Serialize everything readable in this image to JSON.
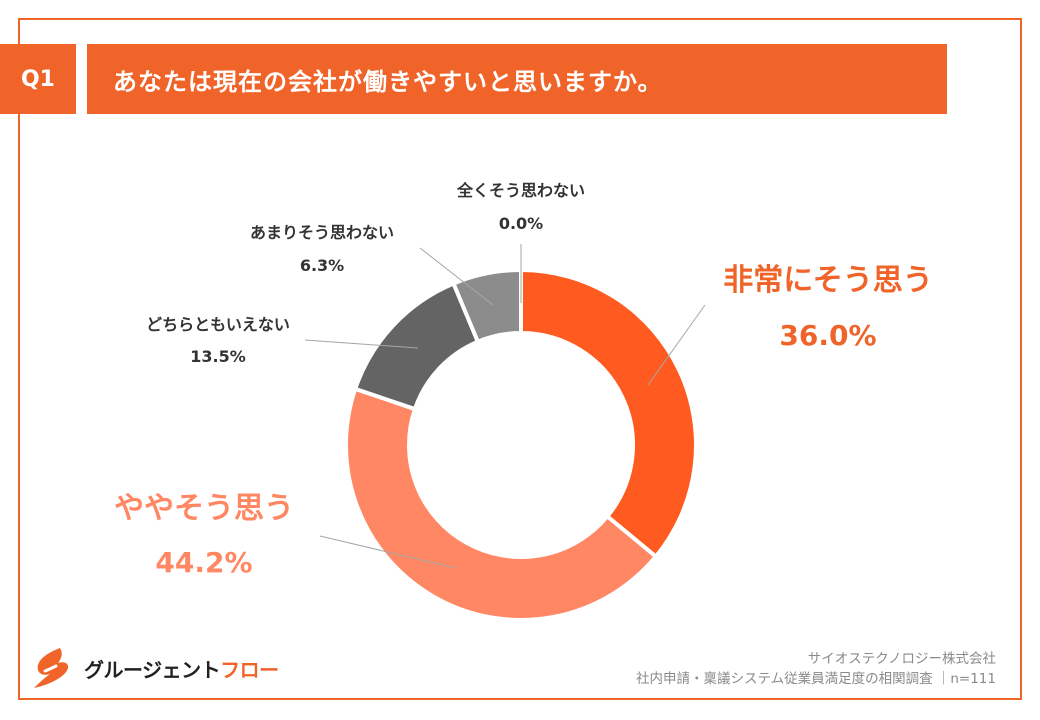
{
  "question": {
    "number": "Q1",
    "text": "あなたは現在の会社が働きやすいと思いますか。"
  },
  "chart_data": {
    "type": "pie",
    "variant": "donut",
    "title": "",
    "labels": [
      "非常にそう思う",
      "ややそう思う",
      "どちらともいえない",
      "あまりそう思わない",
      "全くそう思わない"
    ],
    "values": [
      36.0,
      44.2,
      13.5,
      6.3,
      0.0
    ],
    "value_labels": [
      "36.0%",
      "44.2%",
      "13.5%",
      "6.3%",
      "0.0%"
    ],
    "colors": [
      "#ff5a1f",
      "#ff8763",
      "#646464",
      "#8c8c8c",
      "#b4b4b4"
    ],
    "label_colors": [
      "#f0642a",
      "#ff8763",
      "#333333",
      "#333333",
      "#333333"
    ],
    "direction": "clockwise",
    "start": "top"
  },
  "logo": {
    "text_dark": "グルージェント",
    "text_accent": "フロー"
  },
  "credit": {
    "line1": "サイオステクノロジー株式会社",
    "line2": "社内申請・稟議システム従業員満足度の相関調査 ｜n=111"
  }
}
